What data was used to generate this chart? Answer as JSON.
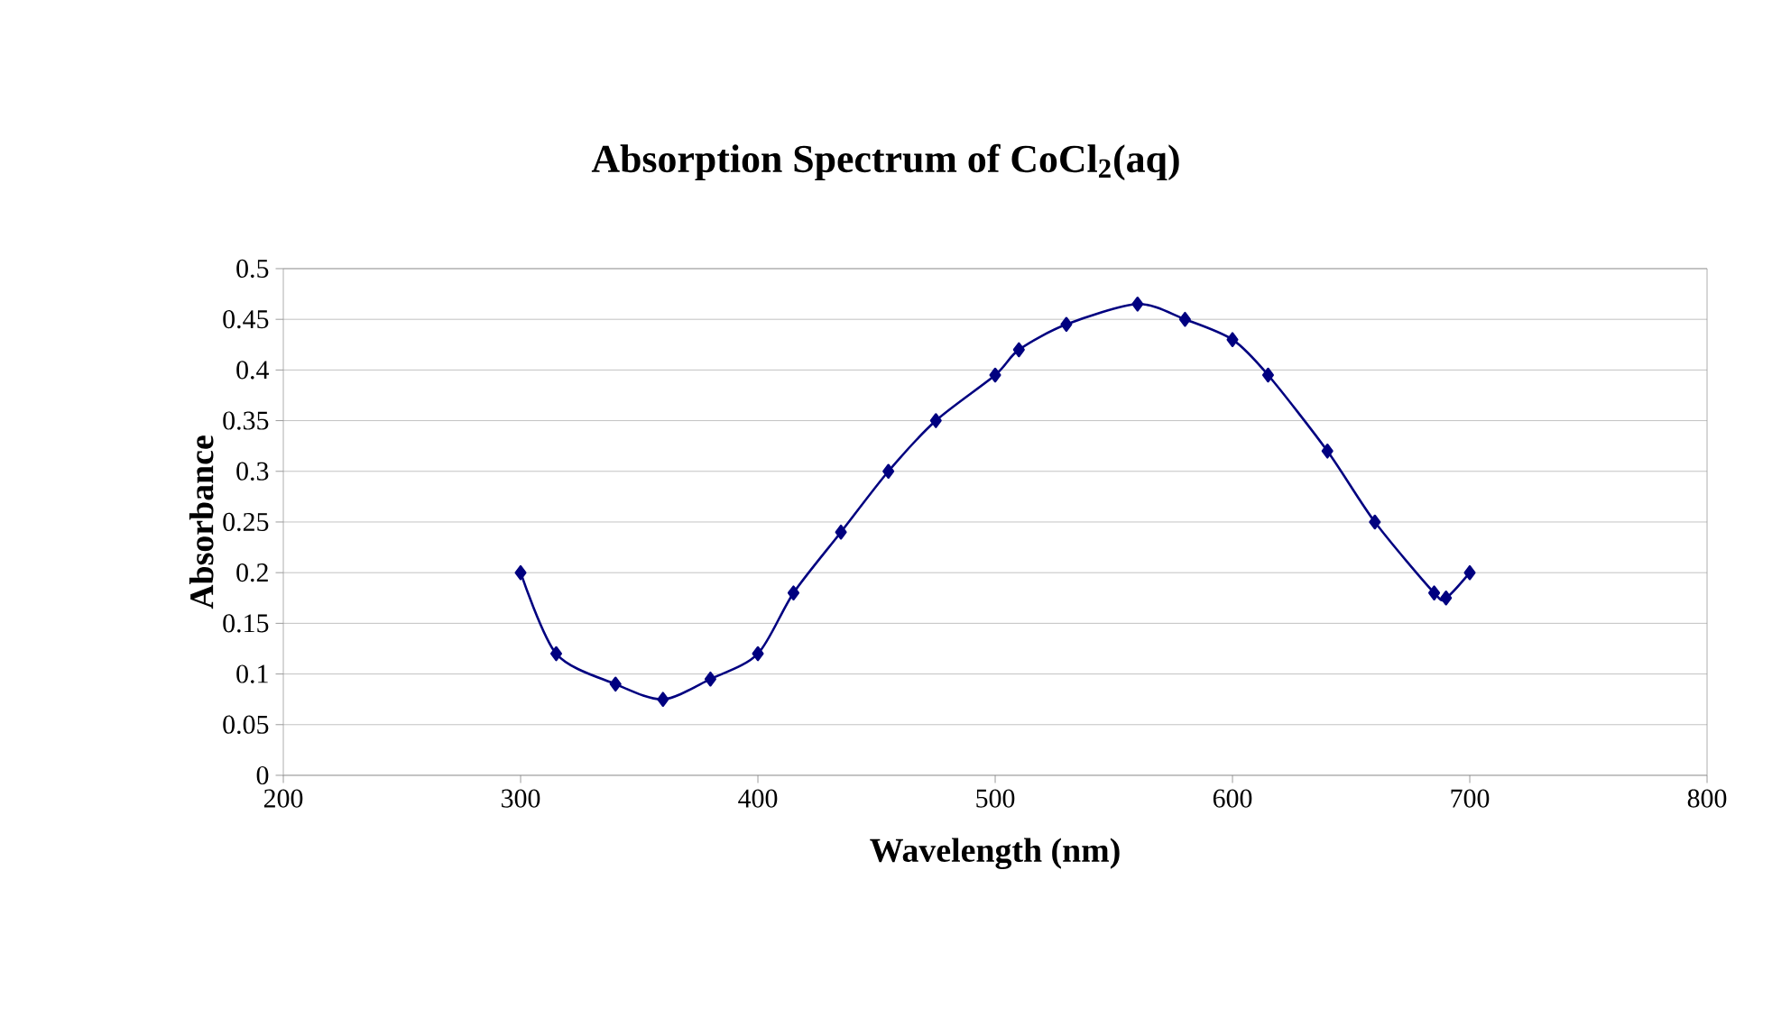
{
  "chart_data": {
    "type": "line",
    "title": "Absorption Spectrum of CoCl$_{2}$(aq)",
    "xlabel": "Wavelength (nm)",
    "ylabel": "Absorbance",
    "x": [
      300,
      315,
      340,
      360,
      380,
      400,
      415,
      435,
      455,
      475,
      500,
      510,
      530,
      560,
      580,
      600,
      615,
      640,
      660,
      685,
      690,
      700
    ],
    "series": [
      {
        "color": "#000080",
        "values": [
          0.2,
          0.12,
          0.09,
          0.075,
          0.095,
          0.12,
          0.18,
          0.24,
          0.3,
          0.35,
          0.395,
          0.42,
          0.445,
          0.465,
          0.45,
          0.43,
          0.395,
          0.32,
          0.25,
          0.18,
          0.175,
          0.2
        ]
      }
    ],
    "xlim": [
      200,
      800
    ],
    "xticks": [
      200,
      300,
      400,
      500,
      600,
      700,
      800
    ],
    "ylim": [
      0,
      0.5
    ],
    "yticks": [
      0,
      0.05,
      0.1,
      0.15,
      0.2,
      0.25,
      0.3,
      0.35,
      0.4,
      0.45,
      0.5
    ],
    "grid": "y",
    "marker": "diamond",
    "line_style": "solid"
  }
}
